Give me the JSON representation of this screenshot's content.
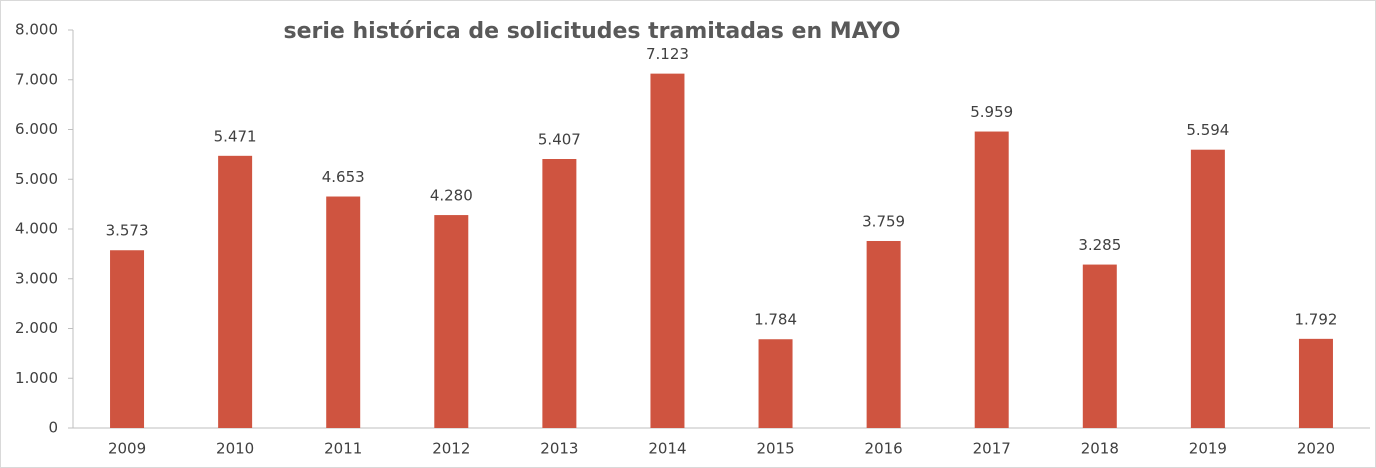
{
  "chart_data": {
    "type": "bar",
    "title": "serie histórica de solicitudes tramitadas en MAYO",
    "categories": [
      "2009",
      "2010",
      "2011",
      "2012",
      "2013",
      "2014",
      "2015",
      "2016",
      "2017",
      "2018",
      "2019",
      "2020"
    ],
    "values": [
      3573,
      5471,
      4653,
      4280,
      5407,
      7123,
      1784,
      3759,
      5959,
      3285,
      5594,
      1792
    ],
    "value_labels": [
      "3.573",
      "5.471",
      "4.653",
      "4.280",
      "5.407",
      "7.123",
      "1.784",
      "3.759",
      "5.959",
      "3.285",
      "5.594",
      "1.792"
    ],
    "color": "#cf5440",
    "ylim": [
      0,
      8000
    ],
    "yticks": [
      0,
      {
        "value": 1000,
        "label": "1.000"
      },
      {
        "value": 2000,
        "label": "2.000"
      },
      {
        "value": 3000,
        "label": "3.000"
      },
      {
        "value": 4000,
        "label": "4.000"
      },
      {
        "value": 5000,
        "label": "5.000"
      },
      {
        "value": 6000,
        "label": "6.000"
      },
      {
        "value": 7000,
        "label": "7.000"
      },
      {
        "value": 8000,
        "label": "8.000"
      }
    ],
    "grid": false
  }
}
